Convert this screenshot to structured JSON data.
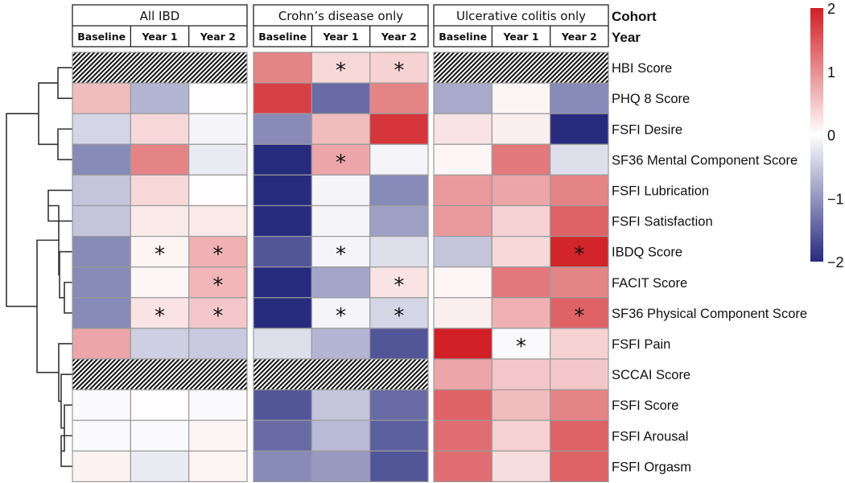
{
  "chart_data": {
    "type": "heatmap",
    "title": "",
    "cohorts": [
      "All IBD",
      "Crohn’s disease only",
      "Ulcerative colitis only"
    ],
    "years": [
      "Baseline",
      "Year 1",
      "Year 2"
    ],
    "header_row_titles": {
      "cohort": "Cohort",
      "year": "Year"
    },
    "rows": [
      "HBI Score",
      "PHQ 8 Score",
      "FSFI Desire",
      "SF36 Mental Component Score",
      "FSFI Lubrication",
      "FSFI Satisfaction",
      "IBDQ Score",
      "FACIT Score",
      "SF36 Physical Component Score",
      "FSFI Pain",
      "SCCAI Score",
      "FSFI Score",
      "FSFI Arousal",
      "FSFI Orgasm"
    ],
    "values": [
      [
        null,
        null,
        null,
        1.1,
        0.35,
        0.4,
        null,
        null,
        null
      ],
      [
        0.6,
        -0.7,
        0.02,
        1.7,
        -1.4,
        1.1,
        -0.8,
        0.1,
        -1.1
      ],
      [
        -0.4,
        0.35,
        -0.1,
        -1.1,
        0.6,
        1.8,
        0.25,
        0.15,
        -2.0
      ],
      [
        -1.1,
        1.1,
        -0.2,
        -2.0,
        0.8,
        -0.1,
        0.08,
        1.2,
        -0.3
      ],
      [
        -0.55,
        0.35,
        0.02,
        -2.0,
        -0.1,
        -1.1,
        0.9,
        0.8,
        1.1
      ],
      [
        -0.55,
        0.2,
        0.2,
        -2.0,
        -0.1,
        -0.9,
        0.9,
        0.4,
        1.4
      ],
      [
        -1.1,
        0.1,
        0.7,
        -1.6,
        -0.1,
        -0.3,
        -0.55,
        0.35,
        1.95
      ],
      [
        -1.1,
        0.08,
        0.65,
        -2.0,
        -0.85,
        0.25,
        0.08,
        1.2,
        1.1
      ],
      [
        -1.1,
        0.25,
        0.5,
        -2.0,
        -0.1,
        -0.4,
        0.15,
        0.7,
        1.4
      ],
      [
        0.8,
        -0.45,
        -0.5,
        -0.3,
        -0.7,
        -1.6,
        2.0,
        -0.05,
        0.4
      ],
      [
        null,
        null,
        null,
        null,
        null,
        null,
        0.8,
        0.5,
        0.5
      ],
      [
        -0.05,
        0.02,
        -0.05,
        -1.6,
        -0.55,
        -1.4,
        1.4,
        0.6,
        1.1
      ],
      [
        -0.05,
        -0.05,
        0.1,
        -1.4,
        -0.65,
        -1.5,
        1.3,
        0.4,
        1.4
      ],
      [
        0.12,
        -0.2,
        0.1,
        -1.1,
        -0.95,
        -1.6,
        1.3,
        0.3,
        1.4
      ]
    ],
    "significant": [
      [
        0,
        4
      ],
      [
        0,
        5
      ],
      [
        3,
        4
      ],
      [
        6,
        1
      ],
      [
        6,
        2
      ],
      [
        6,
        4
      ],
      [
        6,
        8
      ],
      [
        7,
        2
      ],
      [
        7,
        5
      ],
      [
        8,
        1
      ],
      [
        8,
        2
      ],
      [
        8,
        4
      ],
      [
        8,
        5
      ],
      [
        8,
        8
      ],
      [
        9,
        7
      ]
    ],
    "significance_marker": "*",
    "missing_pattern": "hatched",
    "colorbar": {
      "range": [
        -2,
        2
      ],
      "ticks": [
        "2",
        "1",
        "0",
        "−1",
        "−2"
      ],
      "tick_values": [
        2,
        1,
        0,
        -1,
        -2
      ],
      "low_color": "#272b7d",
      "mid_color": "#ffffff",
      "high_color": "#d01f25"
    },
    "dendrogram": {
      "side": "left",
      "merges": [
        [
          0,
          1
        ],
        [
          2,
          3
        ],
        [
          "0-1",
          "2-3"
        ],
        [
          4,
          5
        ],
        [
          7,
          8
        ],
        [
          6,
          "7-8"
        ],
        [
          "4-5",
          "6-7-8"
        ],
        [
          12,
          13
        ],
        [
          11,
          "12-13"
        ],
        [
          10,
          "11-12-13"
        ],
        [
          9,
          "10-11-12-13"
        ],
        [
          "4-8",
          "9-13"
        ],
        [
          "0-3",
          "4-13"
        ]
      ]
    },
    "legend_position": "right",
    "xlabel": "",
    "ylabel": ""
  }
}
